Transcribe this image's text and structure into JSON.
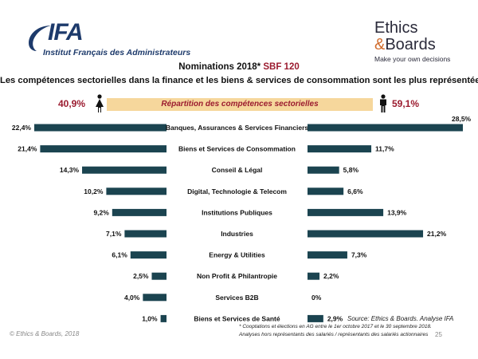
{
  "logos": {
    "ifa_word": "IFA",
    "ifa_sub": "Institut Français des Administrateurs",
    "eb_line1": "Ethics",
    "eb_amp": "&",
    "eb_line2": "Boards",
    "eb_tagline": "Make your own decisions"
  },
  "header": {
    "nominations": "Nominations 2018*",
    "sbf": "SBF 120",
    "headline": "Les compétences sectorielles dans la finance et les biens & services de consommation sont les plus représentées"
  },
  "banner": {
    "title": "Répartition des compétences sectorielles",
    "left_pct": "40,9%",
    "right_pct": "59,1%",
    "icon_left": "woman-icon",
    "icon_right": "man-icon"
  },
  "chart_data": {
    "type": "bar",
    "orientation": "horizontal-butterfly",
    "title": "Répartition des compétences sectorielles",
    "categories": [
      "Banques, Assurances & Services Financiers",
      "Biens et Services de Consommation",
      "Conseil & Légal",
      "Digital, Technologie & Telecom",
      "Institutions Publiques",
      "Industries",
      "Energy & Utilities",
      "Non Profit & Philantropie",
      "Services B2B",
      "Biens et Services de Santé"
    ],
    "series": [
      {
        "side": "left",
        "values": [
          22.4,
          21.4,
          14.3,
          10.2,
          9.2,
          7.1,
          6.1,
          2.5,
          4.0,
          1.0
        ],
        "labels": [
          "22,4%",
          "21,4%",
          "14,3%",
          "10,2%",
          "9,2%",
          "7,1%",
          "6,1%",
          "2,5%",
          "4,0%",
          "1,0%"
        ]
      },
      {
        "side": "right",
        "values": [
          28.5,
          11.7,
          5.8,
          6.6,
          13.9,
          21.2,
          7.3,
          2.2,
          0,
          2.9
        ],
        "labels": [
          "28,5%",
          "11,7%",
          "5,8%",
          "6,6%",
          "13,9%",
          "21,2%",
          "7,3%",
          "2,2%",
          "0%",
          "2,9%"
        ]
      }
    ],
    "bar_color": "#1b4450"
  },
  "footer": {
    "source": "Source: Ethics & Boards. Analyse IFA",
    "note1": "* Cooptations et élections en AG entre le 1er octobre 2017 et le 30 septembre 2018.",
    "note2": "Analyses hors représentants des salariés / représentants des salariés actionnaires",
    "copyright": "© Ethics & Boards, 2018",
    "page": "25"
  }
}
